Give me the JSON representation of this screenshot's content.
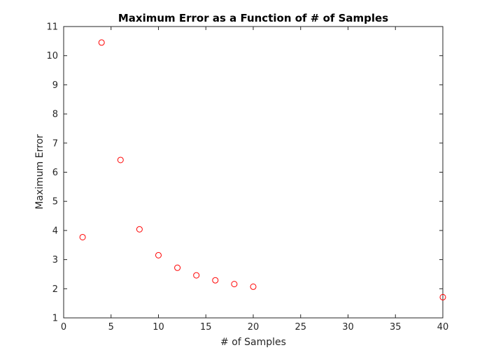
{
  "chart_data": {
    "type": "scatter",
    "title": "Maximum Error as a Function of # of Samples",
    "xlabel": "# of Samples",
    "ylabel": "Maximum Error",
    "xlim": [
      0,
      40
    ],
    "ylim": [
      1,
      11
    ],
    "xticks": [
      0,
      5,
      10,
      15,
      20,
      25,
      30,
      35,
      40
    ],
    "yticks": [
      1,
      2,
      3,
      4,
      5,
      6,
      7,
      8,
      9,
      10,
      11
    ],
    "grid": false,
    "marker": "open-circle",
    "marker_color": "#ff0000",
    "series": [
      {
        "x": [
          2,
          4,
          6,
          8,
          10,
          12,
          14,
          16,
          18,
          20,
          40
        ],
        "y": [
          3.77,
          10.45,
          6.42,
          4.04,
          3.15,
          2.72,
          2.46,
          2.29,
          2.16,
          2.07,
          1.71
        ]
      }
    ]
  }
}
